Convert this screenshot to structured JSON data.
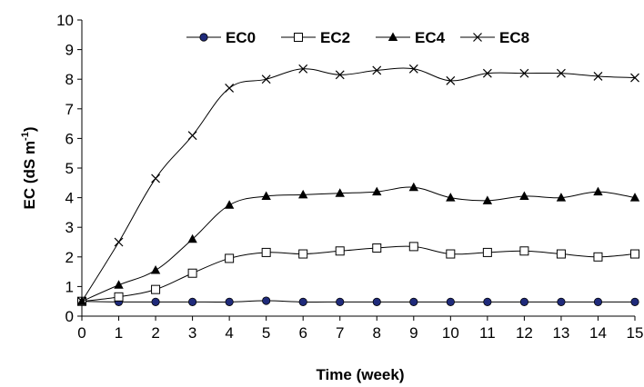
{
  "chart_data": {
    "type": "line",
    "title": "",
    "xlabel": "Time (week)",
    "ylabel": "EC (dS m",
    "ylabel_sup": "-1",
    "ylabel_close": ")",
    "x": [
      0,
      1,
      2,
      3,
      4,
      5,
      6,
      7,
      8,
      9,
      10,
      11,
      12,
      13,
      14,
      15
    ],
    "xlim": [
      0,
      15
    ],
    "ylim": [
      0,
      10
    ],
    "xticks": [
      "0",
      "1",
      "2",
      "3",
      "4",
      "5",
      "6",
      "7",
      "8",
      "9",
      "10",
      "11",
      "12",
      "13",
      "14",
      "15"
    ],
    "yticks": [
      "0",
      "1",
      "2",
      "3",
      "4",
      "5",
      "6",
      "7",
      "8",
      "9",
      "10"
    ],
    "grid": false,
    "legend_position": "top",
    "smooth": true,
    "series": [
      {
        "name": "EC0",
        "marker": "filled-circle",
        "color": "#1f2a7a",
        "values": [
          0.5,
          0.48,
          0.48,
          0.48,
          0.48,
          0.52,
          0.48,
          0.48,
          0.48,
          0.48,
          0.48,
          0.48,
          0.48,
          0.48,
          0.48,
          0.48
        ]
      },
      {
        "name": "EC2",
        "marker": "open-square",
        "color": "#000000",
        "values": [
          0.5,
          0.65,
          0.9,
          1.45,
          1.95,
          2.15,
          2.1,
          2.2,
          2.3,
          2.35,
          2.1,
          2.15,
          2.2,
          2.1,
          2.0,
          2.1
        ]
      },
      {
        "name": "EC4",
        "marker": "filled-triangle",
        "color": "#000000",
        "values": [
          0.5,
          1.05,
          1.55,
          2.6,
          3.75,
          4.05,
          4.1,
          4.15,
          4.2,
          4.35,
          4.0,
          3.9,
          4.05,
          4.0,
          4.2,
          4.0
        ]
      },
      {
        "name": "EC8",
        "marker": "x",
        "color": "#000000",
        "values": [
          0.5,
          2.5,
          4.65,
          6.1,
          7.7,
          8.0,
          8.35,
          8.15,
          8.3,
          8.35,
          7.95,
          8.2,
          8.2,
          8.2,
          8.1,
          8.05
        ]
      }
    ]
  }
}
